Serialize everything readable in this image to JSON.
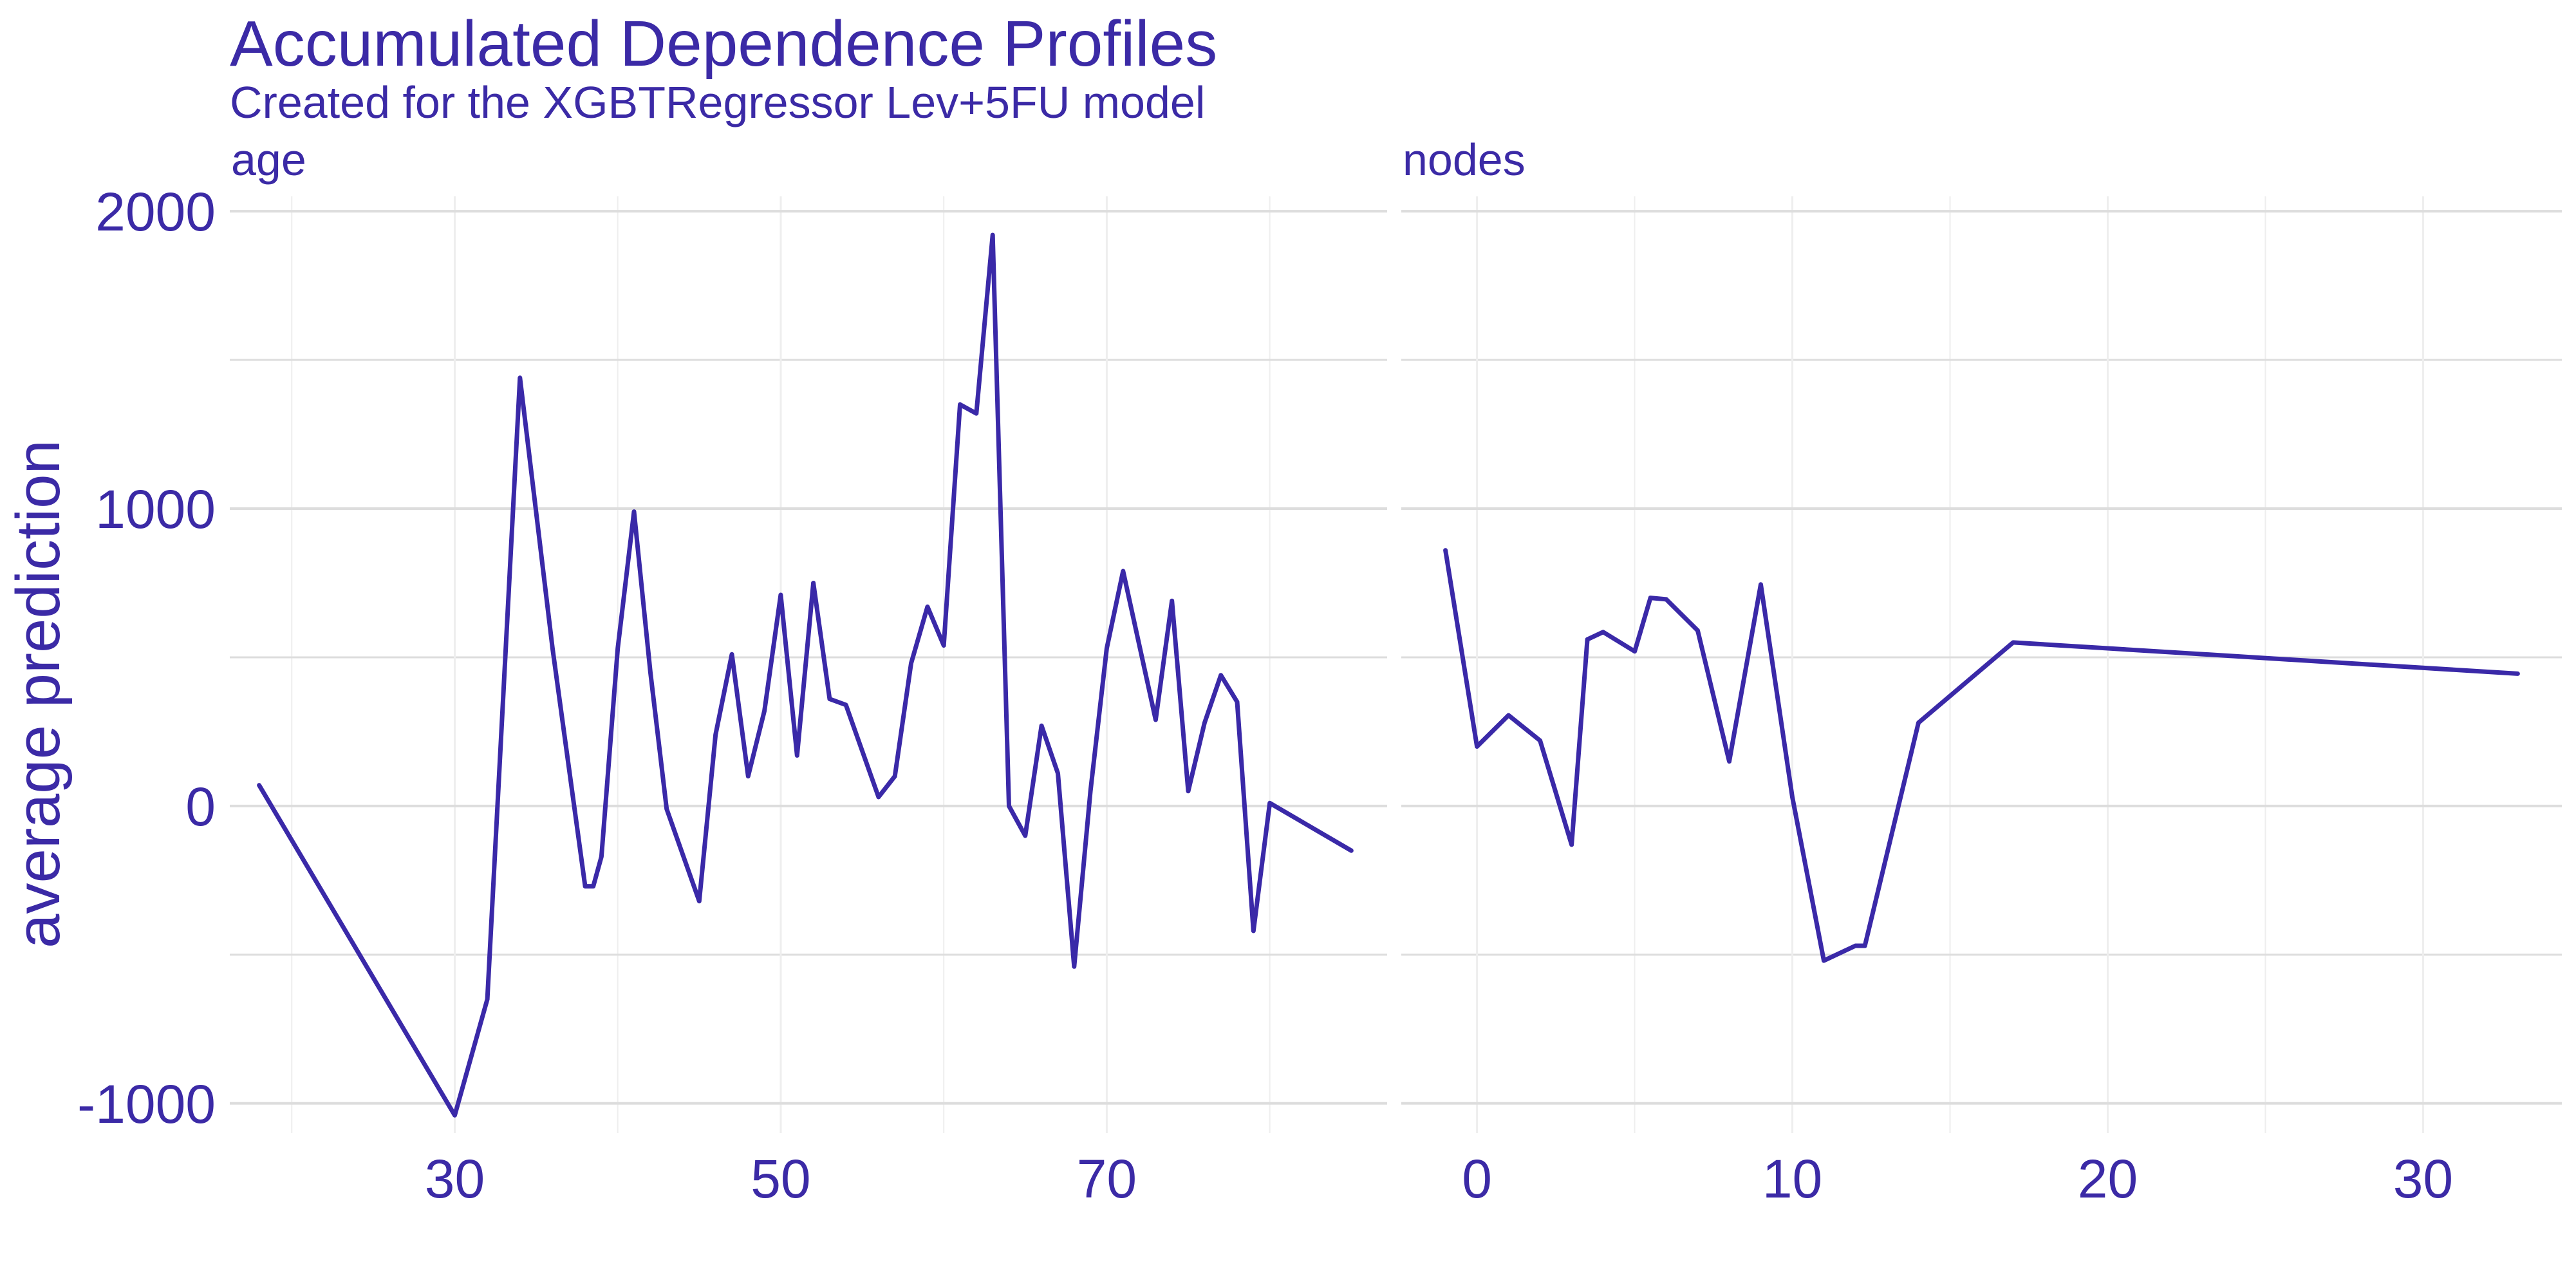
{
  "title": "Accumulated Dependence Profiles",
  "subtitle": "Created for the XGBTRegressor Lev+5FU model",
  "colors": {
    "line": "#3a29a8",
    "text": "#3b2aa6",
    "grid_major": "#dddddd",
    "grid_minor": "#eeeeee"
  },
  "chart_data": {
    "type": "line",
    "ylabel": "average prediction",
    "ylim": [
      -1100,
      2050
    ],
    "yticks": [
      -1000,
      0,
      1000,
      2000
    ],
    "y_minor_ticks": [
      -500,
      500,
      1500
    ],
    "grid": true,
    "panels": [
      {
        "name": "age",
        "xlim": [
          16.2,
          87.2
        ],
        "xticks": [
          30,
          50,
          70
        ],
        "x_minor_ticks": [
          20,
          40,
          60,
          80
        ],
        "x": [
          18,
          30,
          32,
          34,
          36,
          38,
          38.5,
          39,
          40,
          41,
          42,
          43,
          45,
          46,
          47,
          48,
          49,
          50,
          51,
          52,
          53,
          54,
          56,
          57,
          58,
          59,
          60,
          61,
          62,
          63,
          64,
          65,
          66,
          67,
          68,
          69,
          70,
          71,
          73,
          74,
          75,
          76,
          77,
          78,
          79,
          80,
          85
        ],
        "y": [
          70,
          -1040,
          -650,
          1440,
          530,
          -270,
          -270,
          -170,
          530,
          990,
          450,
          -10,
          -320,
          240,
          510,
          100,
          320,
          710,
          170,
          750,
          360,
          340,
          30,
          100,
          480,
          670,
          540,
          1350,
          1320,
          1920,
          0,
          -100,
          270,
          110,
          -540,
          50,
          530,
          790,
          290,
          690,
          50,
          280,
          440,
          350,
          -420,
          10,
          -150
        ]
      },
      {
        "name": "nodes",
        "xlim": [
          -2.4,
          34.4
        ],
        "xticks": [
          0,
          10,
          20,
          30
        ],
        "x_minor_ticks": [
          5,
          15,
          25
        ],
        "x": [
          -1,
          0,
          1,
          2,
          3,
          3.5,
          4,
          5,
          5.5,
          6,
          7,
          8,
          9,
          10,
          11,
          12,
          12.3,
          14,
          17,
          33
        ],
        "y": [
          860,
          200,
          305,
          220,
          -130,
          560,
          585,
          520,
          700,
          695,
          590,
          150,
          745,
          30,
          -520,
          -470,
          -470,
          280,
          550,
          445
        ]
      }
    ]
  }
}
